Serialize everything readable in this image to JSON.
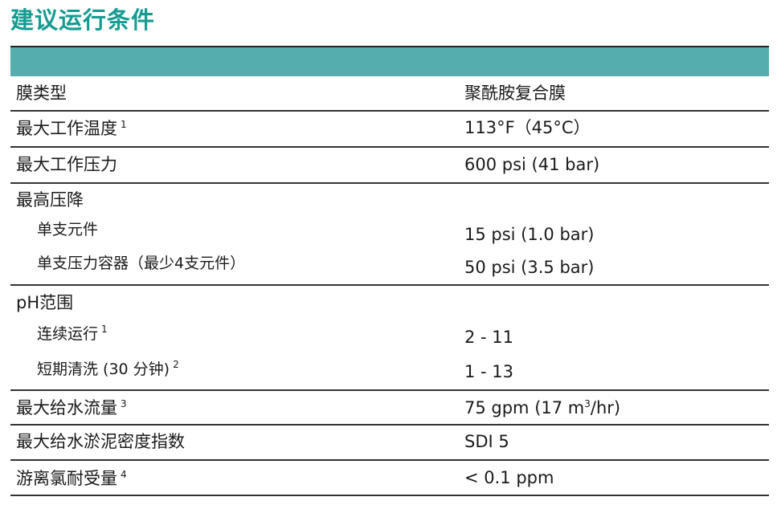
{
  "title": "建议运行条件",
  "header_color": "#55adad",
  "title_color": "#159b91",
  "rows": [
    {
      "label": "膜类型",
      "value": "聚酰胺复合膜"
    },
    {
      "label": "最大工作温度",
      "note": "1",
      "value": "113°F（45°C）"
    },
    {
      "label": "最大工作压力",
      "value": "600 psi (41 bar)"
    },
    {
      "label": "最高压降",
      "subrows": [
        {
          "label": "单支元件",
          "value": "15 psi (1.0 bar)"
        },
        {
          "label": "单支压力容器（最少4支元件）",
          "value": "50 psi (3.5 bar)"
        }
      ]
    },
    {
      "label": "pH范围",
      "subrows": [
        {
          "label": "连续运行",
          "note": "1",
          "value": "2 - 11"
        },
        {
          "label": "短期清洗 (30 分钟)",
          "note": "2",
          "value": "1 - 13"
        }
      ]
    },
    {
      "label": "最大给水流量",
      "note": "3",
      "value_pre": "75 gpm (17 m",
      "value_sup": "3",
      "value_post": "/hr)"
    },
    {
      "label": "最大给水淤泥密度指数",
      "value": "SDI 5"
    },
    {
      "label": "游离氯耐受量",
      "note": "4",
      "value": "< 0.1 ppm"
    }
  ]
}
